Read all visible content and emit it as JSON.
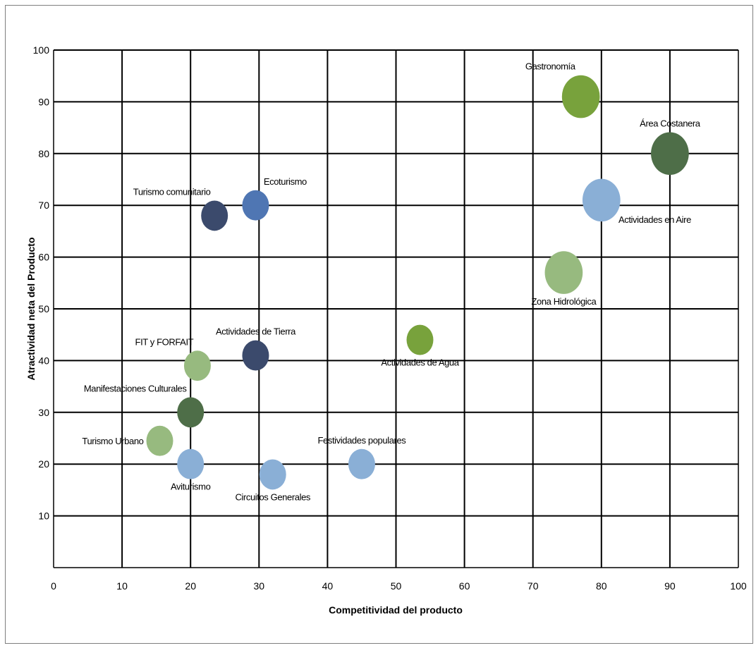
{
  "chart_data": {
    "type": "bubble",
    "xlabel": "Competitividad del producto",
    "ylabel": "Atractividad neta del Producto",
    "xlim": [
      0,
      100
    ],
    "ylim": [
      0,
      100
    ],
    "x_ticks": [
      "0",
      "10",
      "20",
      "30",
      "40",
      "50",
      "60",
      "70",
      "80",
      "90",
      "100"
    ],
    "y_ticks": [
      "10",
      "20",
      "30",
      "40",
      "50",
      "60",
      "70",
      "80",
      "90",
      "100"
    ],
    "grid": true,
    "points": [
      {
        "label": "Gastronomía",
        "x": 77,
        "y": 91,
        "size": 3.0,
        "color": "#78a23c",
        "label_pos": "left-up"
      },
      {
        "label": "Área Costanera",
        "x": 90,
        "y": 80,
        "size": 3.0,
        "color": "#4e6e48",
        "label_pos": "up"
      },
      {
        "label": "Actividades en Aire",
        "x": 80,
        "y": 71,
        "size": 3.0,
        "color": "#8aafd6",
        "label_pos": "right-down"
      },
      {
        "label": "Zona Hidrológica",
        "x": 74.5,
        "y": 57,
        "size": 3.0,
        "color": "#97ba7f",
        "label_pos": "down"
      },
      {
        "label": "Turismo comunitario",
        "x": 23.5,
        "y": 68,
        "size": 1.5,
        "color": "#3b4a6c",
        "label_pos": "left-up"
      },
      {
        "label": "Ecoturismo",
        "x": 29.5,
        "y": 70,
        "size": 1.5,
        "color": "#4f76b3",
        "label_pos": "right-up"
      },
      {
        "label": "Actividades de Tierra",
        "x": 29.5,
        "y": 41,
        "size": 1.5,
        "color": "#3b4a6c",
        "label_pos": "up"
      },
      {
        "label": "Actividades de Agua",
        "x": 53.5,
        "y": 44,
        "size": 1.5,
        "color": "#78a23c",
        "label_pos": "down"
      },
      {
        "label": "FIT y FORFAIT",
        "x": 21,
        "y": 39,
        "size": 1.5,
        "color": "#97ba7f",
        "label_pos": "left-up"
      },
      {
        "label": "Manifestaciones Culturales",
        "x": 20,
        "y": 30,
        "size": 1.5,
        "color": "#4e6e48",
        "label_pos": "left-up"
      },
      {
        "label": "Turismo Urbano",
        "x": 15.5,
        "y": 24.5,
        "size": 1.5,
        "color": "#97ba7f",
        "label_pos": "left"
      },
      {
        "label": "Aviturismo",
        "x": 20,
        "y": 20,
        "size": 1.5,
        "color": "#8aafd6",
        "label_pos": "down"
      },
      {
        "label": "Circuitos Generales",
        "x": 32,
        "y": 18,
        "size": 1.5,
        "color": "#8aafd6",
        "label_pos": "down"
      },
      {
        "label": "Festividades populares",
        "x": 45,
        "y": 20,
        "size": 1.5,
        "color": "#8aafd6",
        "label_pos": "up"
      }
    ]
  }
}
